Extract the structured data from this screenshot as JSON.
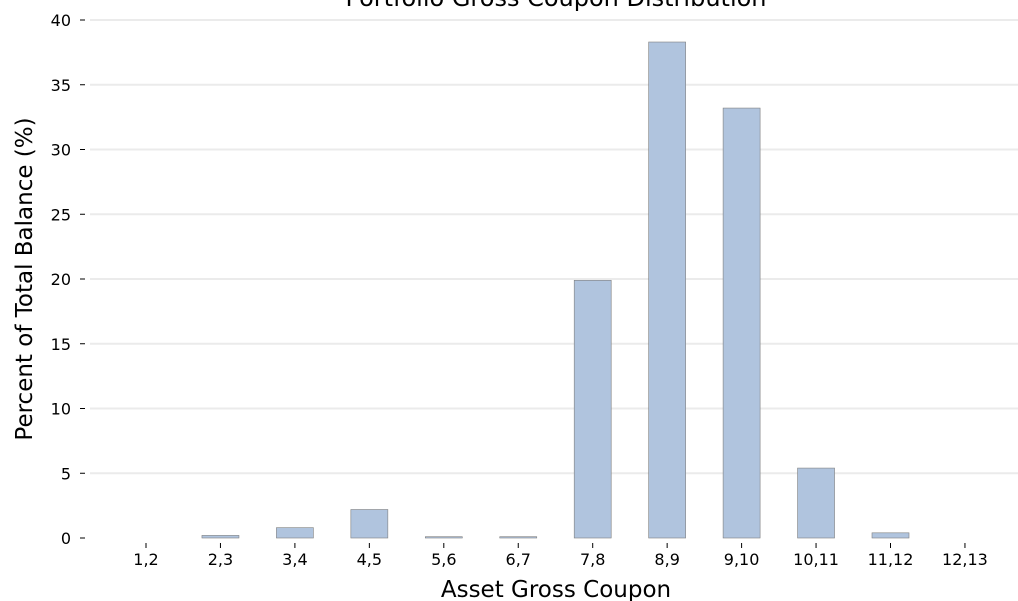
{
  "chart_data": {
    "type": "bar",
    "title": "Portfolio Gross Coupon Distribution",
    "xlabel": "Asset Gross Coupon",
    "ylabel": "Percent of Total Balance (%)",
    "categories": [
      "1,2",
      "2,3",
      "3,4",
      "4,5",
      "5,6",
      "6,7",
      "7,8",
      "8,9",
      "9,10",
      "10,11",
      "11,12",
      "12,13"
    ],
    "values": [
      0,
      0.2,
      0.8,
      2.2,
      0.1,
      0.1,
      19.9,
      38.3,
      33.2,
      5.4,
      0.4,
      0
    ],
    "ylim": [
      0,
      40
    ],
    "yticks": [
      0,
      5,
      10,
      15,
      20,
      25,
      30,
      35,
      40
    ],
    "grid": "horizontal",
    "bar_color": "#b0c4de"
  }
}
